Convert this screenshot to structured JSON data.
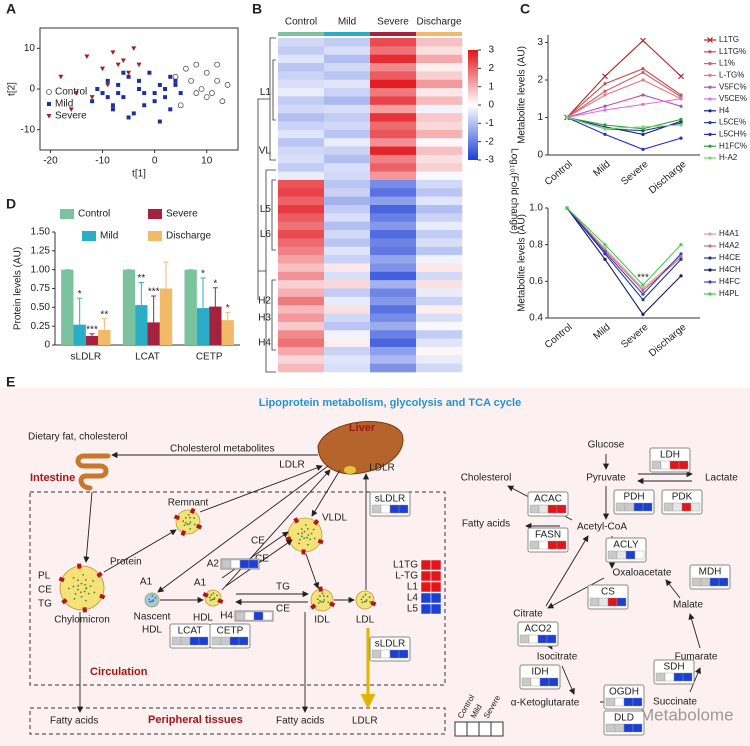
{
  "panel_labels": [
    "A",
    "B",
    "C",
    "D",
    "E"
  ],
  "chart_data": [
    {
      "type": "scatter",
      "xlabel": "t[1]",
      "ylabel": "t[2]",
      "xlim": [
        -22,
        16
      ],
      "ylim": [
        -15,
        15
      ],
      "xticks": [
        -20,
        -10,
        0,
        10
      ],
      "yticks": [
        -10,
        0,
        10
      ],
      "series": [
        {
          "name": "Control",
          "color": "#555555",
          "marker": "circle",
          "x": [
            6,
            8,
            10,
            12,
            11,
            13,
            9,
            7,
            14,
            12,
            10,
            8,
            5,
            4
          ],
          "y": [
            5,
            6,
            4,
            2,
            -1,
            -3,
            0,
            2,
            1,
            6,
            -2,
            -1,
            -4,
            3
          ]
        },
        {
          "name": "Mild",
          "color": "#1f2f9f",
          "marker": "square",
          "x": [
            -12,
            -10,
            -9,
            -8,
            -7,
            -6,
            -5,
            -4,
            -3,
            -2,
            -1,
            0,
            1,
            2,
            3,
            4,
            5,
            -11,
            -8,
            -5,
            -3,
            0,
            2,
            -6,
            -9,
            1,
            3,
            -2,
            4,
            -7
          ],
          "y": [
            -3,
            -1,
            2,
            -4,
            1,
            -2,
            3,
            -6,
            0,
            -1,
            4,
            -3,
            1,
            -2,
            -5,
            2,
            -1,
            0,
            -5,
            -7,
            2,
            -1,
            0,
            4,
            -2,
            -8,
            3,
            -4,
            1,
            -1
          ]
        },
        {
          "name": "Severe",
          "color": "#a02020",
          "marker": "triangle",
          "x": [
            -18,
            -15,
            -13,
            -10,
            -8,
            -7,
            -6,
            -5,
            -9,
            -4,
            -3,
            -12,
            -16
          ],
          "y": [
            3,
            -1,
            8,
            5,
            9,
            6,
            7,
            4,
            1,
            10,
            6,
            -2,
            -5
          ]
        }
      ]
    },
    {
      "type": "heatmap",
      "clim": [
        -3,
        3
      ],
      "cticks": [
        3,
        2,
        1,
        0,
        -1,
        -2,
        -3
      ],
      "clabel": "Log₁₀(Fold change)",
      "categories": [
        null,
        null,
        null,
        null,
        null,
        null,
        "L1",
        null,
        null,
        null,
        null,
        null,
        null,
        "VL",
        null,
        null,
        null,
        null,
        null,
        null,
        "L5",
        null,
        null,
        "L6",
        null,
        null,
        null,
        null,
        null,
        null,
        null,
        "H2",
        null,
        "H3",
        null,
        null,
        "H4",
        null,
        null,
        null
      ],
      "series": [
        {
          "name": "Control",
          "color": "#7cc29f",
          "values": [
            -0.6,
            -0.8,
            -0.4,
            -0.9,
            -0.7,
            -0.5,
            -0.3,
            -0.8,
            -0.6,
            -1.0,
            -0.7,
            -0.4,
            -0.9,
            -0.6,
            -0.5,
            -0.8,
            -0.3,
            2.2,
            2.4,
            2.0,
            2.5,
            2.1,
            1.8,
            2.3,
            1.9,
            1.6,
            1.2,
            0.8,
            1.4,
            0.6,
            1.0,
            1.7,
            0.9,
            1.3,
            0.7,
            1.5,
            1.8,
            1.1,
            0.5,
            0.9
          ]
        },
        {
          "name": "Mild",
          "color": "#2aaec8",
          "values": [
            -0.8,
            -0.5,
            -1.0,
            -0.6,
            -0.9,
            -0.4,
            -0.7,
            -1.1,
            -0.5,
            -0.8,
            -0.6,
            -0.9,
            -0.3,
            -0.7,
            -1.0,
            -0.5,
            -0.6,
            -0.9,
            -0.7,
            -1.2,
            -0.8,
            -0.5,
            -1.0,
            -0.6,
            -0.9,
            -0.4,
            -0.7,
            0.3,
            -0.5,
            0.5,
            -0.8,
            -0.3,
            0.4,
            -0.6,
            -0.9,
            -0.2,
            0.2,
            -0.7,
            -0.4,
            -0.5
          ]
        },
        {
          "name": "Severe",
          "color": "#a3233f",
          "values": [
            2.3,
            1.8,
            2.7,
            1.5,
            2.1,
            2.9,
            1.7,
            2.4,
            1.2,
            2.6,
            1.9,
            2.2,
            1.4,
            2.8,
            1.6,
            2.0,
            1.3,
            -1.8,
            -2.2,
            -1.5,
            -2.4,
            -2.0,
            -1.6,
            -2.3,
            -1.9,
            -2.1,
            -1.4,
            -1.7,
            -2.5,
            -1.2,
            -1.9,
            -1.6,
            -2.2,
            -1.8,
            -1.3,
            -2.0,
            -2.4,
            -1.5,
            -1.1,
            -1.7
          ]
        },
        {
          "name": "Discharge",
          "color": "#f2b968",
          "values": [
            0.8,
            0.4,
            1.1,
            0.2,
            0.6,
            1.3,
            0.3,
            0.9,
            -0.2,
            0.7,
            0.5,
            1.0,
            0.1,
            0.8,
            0.4,
            0.6,
            -0.1,
            -0.6,
            -0.9,
            -0.4,
            -1.0,
            -0.7,
            -0.3,
            -0.8,
            -0.5,
            -0.9,
            -0.2,
            0.3,
            -0.6,
            0.4,
            -0.3,
            -0.7,
            0.2,
            -0.5,
            -0.1,
            -0.8,
            -0.4,
            0.1,
            -0.3,
            -0.6
          ]
        }
      ]
    },
    {
      "type": "line",
      "ylabel": "Metabolite levels (AU)",
      "categories": [
        "Control",
        "Mild",
        "Severe",
        "Discharge"
      ],
      "ylim": [
        0,
        3.2
      ],
      "yticks": [
        0,
        1,
        2,
        3
      ],
      "series": [
        {
          "name": "L1TG",
          "color": "#b22222",
          "marker": "cross",
          "values": [
            1,
            2.1,
            3.05,
            2.1
          ]
        },
        {
          "name": "L1TG%",
          "color": "#c0504d",
          "marker": "dot",
          "values": [
            1,
            1.9,
            2.3,
            1.6
          ]
        },
        {
          "name": "L1%",
          "color": "#d06070",
          "marker": "dot",
          "values": [
            1,
            1.7,
            2.2,
            1.55
          ]
        },
        {
          "name": "L-TG%",
          "color": "#e07a8a",
          "marker": "dot",
          "values": [
            1,
            1.6,
            2.0,
            1.5
          ]
        },
        {
          "name": "V5FC%",
          "color": "#b050c0",
          "marker": "dot",
          "values": [
            1,
            1.3,
            1.6,
            1.3
          ]
        },
        {
          "name": "V5CE%",
          "color": "#e070e0",
          "marker": "dot",
          "values": [
            1,
            1.2,
            1.35,
            1.5
          ]
        },
        {
          "name": "H4",
          "color": "#1a237e",
          "marker": "dot",
          "values": [
            1,
            0.75,
            0.55,
            0.9
          ]
        },
        {
          "name": "L5CE%",
          "color": "#1f3fa0",
          "marker": "dot",
          "values": [
            1,
            0.7,
            0.65,
            0.85
          ]
        },
        {
          "name": "L5CH%",
          "color": "#2b2bd0",
          "marker": "dot",
          "values": [
            1,
            0.55,
            0.15,
            0.45
          ]
        },
        {
          "name": "H1FC%",
          "color": "#2e9e3e",
          "marker": "dot",
          "values": [
            1,
            0.8,
            0.7,
            0.95
          ]
        },
        {
          "name": "H-A2",
          "color": "#7ad66a",
          "marker": "dot",
          "values": [
            1,
            0.7,
            0.75,
            0.8
          ]
        }
      ]
    },
    {
      "type": "line",
      "ylabel": "Metabolite levels (AU)",
      "categories": [
        "Control",
        "Mild",
        "Severe",
        "Discharge"
      ],
      "ylim": [
        0.4,
        1.0
      ],
      "yticks": [
        0.4,
        0.6,
        0.8,
        {
          "value": 1,
          "label": "1.0"
        }
      ],
      "annotation": "***",
      "series": [
        {
          "name": "H4A1",
          "color": "#e69aa0",
          "marker": "dot",
          "values": [
            1,
            0.78,
            0.56,
            0.74
          ]
        },
        {
          "name": "H4A2",
          "color": "#c87080",
          "marker": "dot",
          "values": [
            1,
            0.77,
            0.55,
            0.73
          ]
        },
        {
          "name": "H4CE",
          "color": "#1f3a8a",
          "marker": "dot",
          "values": [
            1,
            0.75,
            0.5,
            0.72
          ]
        },
        {
          "name": "H4CH",
          "color": "#141a60",
          "marker": "dot",
          "values": [
            1,
            0.72,
            0.42,
            0.63
          ]
        },
        {
          "name": "H4FC",
          "color": "#4040c0",
          "marker": "dot",
          "values": [
            1,
            0.76,
            0.53,
            0.75
          ]
        },
        {
          "name": "H4PL",
          "color": "#3ccf4e",
          "marker": "dot",
          "values": [
            1,
            0.8,
            0.58,
            0.8
          ]
        }
      ]
    },
    {
      "type": "bar",
      "ylabel": "Protein levels (AU)",
      "categories": [
        "sLDLR",
        "LCAT",
        "CETP"
      ],
      "ylim": [
        0,
        1.5
      ],
      "yticks": [
        0,
        0.25,
        {
          "value": 0.5,
          "label": "0.50"
        },
        0.75,
        {
          "value": 1,
          "label": "1.00"
        },
        1.25,
        {
          "value": 1.5,
          "label": "1.50"
        }
      ],
      "series": [
        {
          "name": "Control",
          "color": "#7cc29f",
          "values": [
            1,
            1,
            1
          ],
          "errors": [
            0,
            0,
            0
          ],
          "annotations": [
            null,
            null,
            null
          ]
        },
        {
          "name": "Mild",
          "color": "#2aaec8",
          "values": [
            0.27,
            0.53,
            0.49
          ],
          "errors": [
            0.35,
            0.3,
            0.4
          ],
          "annotations": [
            "*",
            "**",
            "*"
          ]
        },
        {
          "name": "Severe",
          "color": "#a3233f",
          "values": [
            0.12,
            0.3,
            0.51
          ],
          "errors": [
            0.03,
            0.35,
            0.25
          ],
          "annotations": [
            "***",
            "***",
            "*"
          ]
        },
        {
          "name": "Discharge",
          "color": "#f2b968",
          "values": [
            0.2,
            0.75,
            0.33
          ],
          "errors": [
            0.15,
            0.35,
            0.1
          ],
          "annotations": [
            "**",
            null,
            "*"
          ]
        }
      ]
    }
  ],
  "diagram": {
    "labels": [
      "Lipoprotein metabolism, glycolysis and TCA cycle",
      "Liver",
      "Dietary fat, cholesterol",
      "Cholesterol metabolites",
      "Intestine",
      "LDLR",
      "LDLR",
      "Remnant",
      "VLDL",
      "CE",
      "CE",
      "Protein",
      "PL",
      "CE",
      "TG",
      "Chylomicron",
      "A1",
      "Nascent",
      "HDL",
      "A1",
      "HDL",
      "TG",
      "CE",
      "IDL",
      "LDL",
      "Circulation",
      "Peripheral tissues",
      "Fatty acids",
      "Fatty acids",
      "LDLR",
      "Glucose",
      "Pyruvate",
      "Lactate",
      "Cholesterol",
      "Fatty acids",
      "Acetyl-CoA",
      "Oxaloacetate",
      "Citrate",
      "Malate",
      "Isocitrate",
      "Fumarate",
      "α-Ketoglutarate",
      "Succinate",
      "Control",
      "Mild",
      "Severe",
      "Metabolome"
    ],
    "enzymes": [
      {
        "name": "LDH",
        "colors": [
          "#c9c9c9",
          "#ffffff",
          "#e3141b",
          "#e3141b"
        ]
      },
      {
        "name": "ACAC",
        "colors": [
          "#c9c9c9",
          "#e6e6e6",
          "#e3141b",
          "#e3141b"
        ]
      },
      {
        "name": "PDH",
        "colors": [
          "#c9c9c9",
          "#c9c9c9",
          "#1c3fd6",
          "#1c3fd6"
        ]
      },
      {
        "name": "PDK",
        "colors": [
          "#c9c9c9",
          "#e6e6e6",
          "#e3141b",
          "#e6e6e6"
        ]
      },
      {
        "name": "FASN",
        "colors": [
          "#c9c9c9",
          "#ffffff",
          "#e3141b",
          "#e3141b"
        ]
      },
      {
        "name": "ACLY",
        "colors": [
          "#c9c9c9",
          "#e6e6e6",
          "#1c3fd6",
          "#ffffff"
        ]
      },
      {
        "name": "CS",
        "colors": [
          "#c9c9c9",
          "#e6e6e6",
          "#e3141b",
          "#1c3fd6"
        ]
      },
      {
        "name": "MDH",
        "colors": [
          "#c9c9c9",
          "#c9c9c9",
          "#1c3fd6",
          "#1c3fd6"
        ]
      },
      {
        "name": "ACO2",
        "colors": [
          "#c9c9c9",
          "#ffffff",
          "#1c3fd6",
          "#1c3fd6"
        ]
      },
      {
        "name": "IDH",
        "colors": [
          "#c9c9c9",
          "#ffffff",
          "#1c3fd6",
          "#1c3fd6"
        ]
      },
      {
        "name": "SDH",
        "colors": [
          "#c9c9c9",
          "#ffffff",
          "#1c3fd6",
          "#1c3fd6"
        ]
      },
      {
        "name": "OGDH",
        "colors": [
          "#c9c9c9",
          "#ffffff",
          "#1c3fd6",
          "#1c3fd6"
        ]
      },
      {
        "name": "DLD",
        "colors": [
          "#c9c9c9",
          "#c9c9c9",
          "#1c3fd6",
          "#1c3fd6"
        ]
      },
      {
        "name": "sLDLR",
        "colors": [
          "#c9c9c9",
          "#ffffff",
          "#1c3fd6",
          "#1c3fd6"
        ]
      },
      {
        "name": "sLDLR",
        "colors": [
          "#c9c9c9",
          "#ffffff",
          "#1c3fd6",
          "#1c3fd6"
        ]
      },
      {
        "name": "LCAT",
        "colors": [
          "#c9c9c9",
          "#c9c9c9",
          "#1c3fd6",
          "#1c3fd6"
        ]
      },
      {
        "name": "CETP",
        "colors": [
          "#c9c9c9",
          "#c9c9c9",
          "#1c3fd6",
          "#1c3fd6"
        ]
      },
      {
        "name": "A2",
        "colors": [
          "#c9c9c9",
          "#ffffff",
          "#1c3fd6",
          "#1c3fd6"
        ]
      },
      {
        "name": "H4",
        "colors": [
          "#c9c9c9",
          "#ffffff",
          "#1c3fd6",
          "#ffffff"
        ]
      }
    ],
    "markers": [
      {
        "name": "L1TG",
        "colors": [
          "#e3141b",
          "#e3141b"
        ]
      },
      {
        "name": "L-TG",
        "colors": [
          "#e3141b",
          "#e3141b"
        ]
      },
      {
        "name": "L1",
        "colors": [
          "#e3141b",
          "#e3141b"
        ]
      },
      {
        "name": "L4",
        "colors": [
          "#1c3fd6",
          "#1c3fd6"
        ]
      },
      {
        "name": "L5",
        "colors": [
          "#1c3fd6",
          "#1c3fd6"
        ]
      }
    ]
  }
}
